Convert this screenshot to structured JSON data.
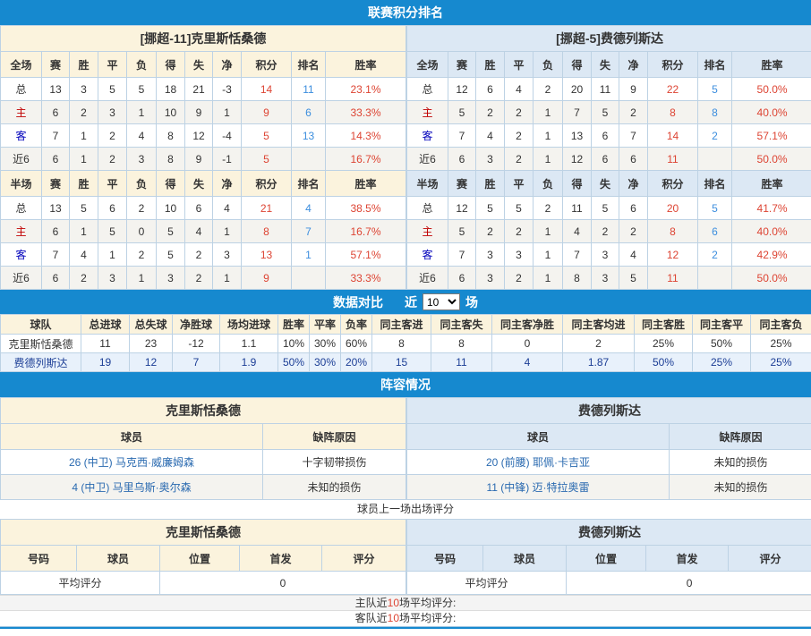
{
  "banners": {
    "standings": "联赛积分排名",
    "comparison": "数据对比",
    "lineup": "阵容情况"
  },
  "colors": {
    "banner_blue": "#1689cf",
    "home_header_bg": "#fbf3dd",
    "away_header_bg": "#dce8f4",
    "stripe_bg": "#f4f3ef",
    "away_row_bg": "#e8f1fb",
    "points_red": "#dd4433",
    "rank_blue": "#3c8ede",
    "home_label_red": "#c00000",
    "away_label_blue": "#0000bb",
    "away_text_navy": "#1c3e96",
    "player_link_blue": "#2a6ab0"
  },
  "stat_headers": {
    "full": [
      "全场",
      "赛",
      "胜",
      "平",
      "负",
      "得",
      "失",
      "净",
      "积分",
      "排名",
      "胜率"
    ],
    "half": [
      "半场",
      "赛",
      "胜",
      "平",
      "负",
      "得",
      "失",
      "净",
      "积分",
      "排名",
      "胜率"
    ]
  },
  "teams": {
    "home": {
      "title": "[挪超-11]克里斯恬桑德",
      "full_rows": [
        [
          "总",
          "13",
          "3",
          "5",
          "5",
          "18",
          "21",
          "-3",
          "14",
          "11",
          "23.1%"
        ],
        [
          "主",
          "6",
          "2",
          "3",
          "1",
          "10",
          "9",
          "1",
          "9",
          "6",
          "33.3%"
        ],
        [
          "客",
          "7",
          "1",
          "2",
          "4",
          "8",
          "12",
          "-4",
          "5",
          "13",
          "14.3%"
        ],
        [
          "近6",
          "6",
          "1",
          "2",
          "3",
          "8",
          "9",
          "-1",
          "5",
          "",
          "16.7%"
        ]
      ],
      "half_rows": [
        [
          "总",
          "13",
          "5",
          "6",
          "2",
          "10",
          "6",
          "4",
          "21",
          "4",
          "38.5%"
        ],
        [
          "主",
          "6",
          "1",
          "5",
          "0",
          "5",
          "4",
          "1",
          "8",
          "7",
          "16.7%"
        ],
        [
          "客",
          "7",
          "4",
          "1",
          "2",
          "5",
          "2",
          "3",
          "13",
          "1",
          "57.1%"
        ],
        [
          "近6",
          "6",
          "2",
          "3",
          "1",
          "3",
          "2",
          "1",
          "9",
          "",
          "33.3%"
        ]
      ]
    },
    "away": {
      "title": "[挪超-5]费德列斯达",
      "full_rows": [
        [
          "总",
          "12",
          "6",
          "4",
          "2",
          "20",
          "11",
          "9",
          "22",
          "5",
          "50.0%"
        ],
        [
          "主",
          "5",
          "2",
          "2",
          "1",
          "7",
          "5",
          "2",
          "8",
          "8",
          "40.0%"
        ],
        [
          "客",
          "7",
          "4",
          "2",
          "1",
          "13",
          "6",
          "7",
          "14",
          "2",
          "57.1%"
        ],
        [
          "近6",
          "6",
          "3",
          "2",
          "1",
          "12",
          "6",
          "6",
          "11",
          "",
          "50.0%"
        ]
      ],
      "half_rows": [
        [
          "总",
          "12",
          "5",
          "5",
          "2",
          "11",
          "5",
          "6",
          "20",
          "5",
          "41.7%"
        ],
        [
          "主",
          "5",
          "2",
          "2",
          "1",
          "4",
          "2",
          "2",
          "8",
          "6",
          "40.0%"
        ],
        [
          "客",
          "7",
          "3",
          "3",
          "1",
          "7",
          "3",
          "4",
          "12",
          "2",
          "42.9%"
        ],
        [
          "近6",
          "6",
          "3",
          "2",
          "1",
          "8",
          "3",
          "5",
          "11",
          "",
          "50.0%"
        ]
      ]
    }
  },
  "comparison": {
    "near_label": "近",
    "games_label": "场",
    "recent_count": "10",
    "headers": [
      "球队",
      "总进球",
      "总失球",
      "净胜球",
      "场均进球",
      "胜率",
      "平率",
      "负率",
      "同主客进",
      "同主客失",
      "同主客净胜",
      "同主客均进",
      "同主客胜",
      "同主客平",
      "同主客负"
    ],
    "rows": [
      [
        "克里斯恬桑德",
        "11",
        "23",
        "-12",
        "1.1",
        "10%",
        "30%",
        "60%",
        "8",
        "8",
        "0",
        "2",
        "25%",
        "50%",
        "25%"
      ],
      [
        "费德列斯达",
        "19",
        "12",
        "7",
        "1.9",
        "50%",
        "30%",
        "20%",
        "15",
        "11",
        "4",
        "1.87",
        "50%",
        "25%",
        "25%"
      ]
    ]
  },
  "lineup": {
    "headers": [
      "球员",
      "缺阵原因"
    ],
    "home": {
      "title": "克里斯恬桑德",
      "players": [
        [
          "26 (中卫) 马克西·威廉姆森",
          "十字韧带损伤"
        ],
        [
          "4 (中卫) 马里乌斯·奥尔森",
          "未知的损伤"
        ]
      ]
    },
    "away": {
      "title": "费德列斯达",
      "players": [
        [
          "20 (前腰) 耶佩·卡吉亚",
          "未知的损伤"
        ],
        [
          "11 (中锋) 迈·特拉奥雷",
          "未知的损伤"
        ]
      ]
    }
  },
  "ratings": {
    "note": "球员上一场出场评分",
    "headers": [
      "号码",
      "球员",
      "位置",
      "首发",
      "评分"
    ],
    "home": {
      "title": "克里斯恬桑德",
      "avg_label": "平均评分",
      "avg_value": "0"
    },
    "away": {
      "title": "费德列斯达",
      "avg_label": "平均评分",
      "avg_value": "0"
    },
    "footer_home": {
      "prefix": "主队近",
      "count": "10",
      "suffix": "场平均评分:"
    },
    "footer_away": {
      "prefix": "客队近",
      "count": "10",
      "suffix": "场平均评分:"
    }
  }
}
